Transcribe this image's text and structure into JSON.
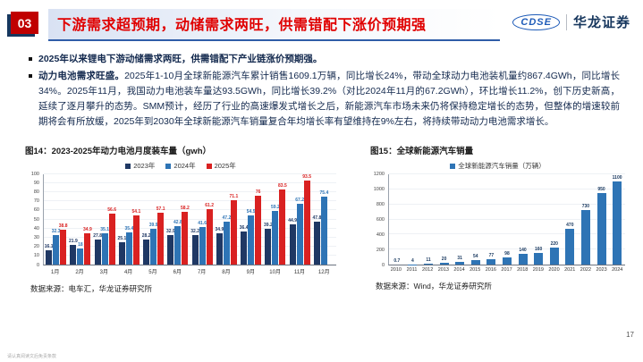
{
  "header": {
    "section_number": "03",
    "title": "下游需求超预期，动储需求两旺，供需错配下涨价预期强",
    "logo": {
      "mark": "CDSE",
      "company": "华龙证券"
    }
  },
  "bullets": [
    {
      "bold": "2025年以来锂电下游动储需求两旺，供需错配下产业链涨价预期强。",
      "text": ""
    },
    {
      "bold": "动力电池需求旺盛。",
      "text": "2025年1-10月全球新能源汽车累计销售1609.1万辆，同比增长24%，带动全球动力电池装机量约867.4GWh，同比增长34%。2025年11月，我国动力电池装车量达93.5GWh，同比增长39.2%（对比2024年11月的67.2GWh），环比增长11.2%，创下历史新高，延续了逐月攀升的态势。SMM预计，经历了行业的高速爆发式增长之后，新能源汽车市场未来仍将保持稳定增长的态势，但整体的增速较前期将会有所放缓，2025年到2030年全球新能源汽车销量复合年均增长率有望维持在9%左右，将持续带动动力电池需求增长。"
    }
  ],
  "colors": {
    "title_red": "#e00000",
    "badge_red": "#c00000",
    "navy": "#17375e",
    "series_2023": "#1f3864",
    "series_2024": "#2e74b5",
    "series_2025": "#d92121"
  },
  "chart_data": [
    {
      "type": "bar",
      "title": "图14：2023-2025年动力电池月度装车量（gwh）",
      "categories": [
        "1月",
        "2月",
        "3月",
        "4月",
        "5月",
        "6月",
        "7月",
        "8月",
        "9月",
        "10月",
        "11月",
        "12月"
      ],
      "series": [
        {
          "name": "2023年",
          "color": "#1f3864",
          "values": [
            16.1,
            21.9,
            27.8,
            25.1,
            28.2,
            32.9,
            32.2,
            34.9,
            36.4,
            39.2,
            44.9,
            47.8
          ]
        },
        {
          "name": "2024年",
          "color": "#2e74b5",
          "values": [
            32.3,
            18.0,
            35.1,
            35.4,
            39.9,
            42.8,
            41.6,
            47.2,
            54.5,
            59.2,
            67.2,
            75.4
          ]
        },
        {
          "name": "2025年",
          "color": "#d92121",
          "values": [
            38.8,
            34.9,
            56.6,
            54.1,
            57.1,
            58.2,
            61.2,
            71.1,
            76.0,
            83.5,
            93.5,
            null
          ]
        }
      ],
      "ylim": [
        0,
        100
      ],
      "ytick": 10,
      "grid": true,
      "legend_position": "top",
      "source": "数据来源：电车汇，华龙证券研究所"
    },
    {
      "type": "bar",
      "title": "图15：全球新能源汽车销量",
      "categories": [
        "2010",
        "2011",
        "2012",
        "2013",
        "2014",
        "2015",
        "2016",
        "2017",
        "2018",
        "2019",
        "2020",
        "2021",
        "2022",
        "2023",
        "2024"
      ],
      "series": [
        {
          "name": "全球新能源汽车销量（万辆）",
          "color": "#2e74b5",
          "label_color": "#17375e",
          "values": [
            0.7,
            4,
            11,
            20,
            31,
            54,
            77,
            98,
            140,
            160,
            220,
            470,
            730,
            950,
            1100
          ]
        }
      ],
      "ylim": [
        0,
        1200
      ],
      "ytick": 200,
      "grid": true,
      "legend_position": "top",
      "source": "数据来源：Wind，华龙证券研究所"
    }
  ],
  "footer": {
    "disclaimer": "请认真阅读文后免责条款",
    "page_number": "17"
  }
}
